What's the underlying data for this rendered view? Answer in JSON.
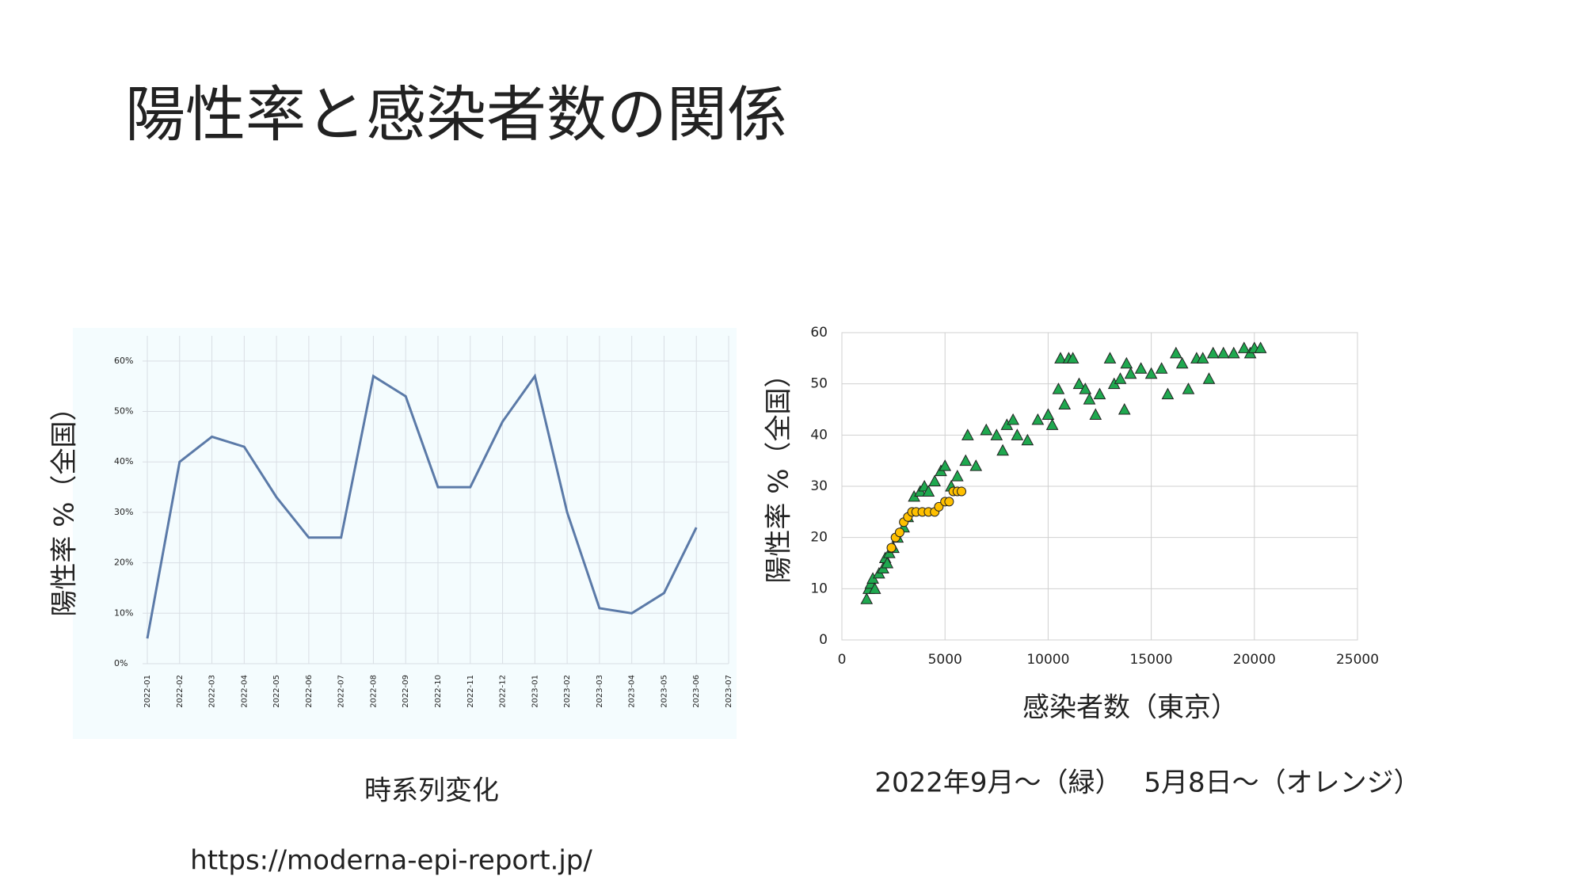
{
  "title": "陽性率と感染者数の関係",
  "charts": [
    {
      "chart_data": {
        "type": "line",
        "ylabel": "陽性率 %（全国）",
        "x": [
          "2022-01",
          "2022-02",
          "2022-03",
          "2022-04",
          "2022-05",
          "2022-06",
          "2022-07",
          "2022-08",
          "2022-09",
          "2022-10",
          "2022-11",
          "2022-12",
          "2023-01",
          "2023-02",
          "2023-03",
          "2023-04",
          "2023-05",
          "2023-06",
          "2023-07"
        ],
        "series": [
          {
            "name": null,
            "color": "#5b7aa8",
            "values": [
              5,
              40,
              45,
              43,
              33,
              25,
              25,
              57,
              53,
              35,
              35,
              48,
              57,
              30,
              11,
              10,
              14,
              27,
              null
            ]
          }
        ],
        "ylim": [
          0,
          65
        ],
        "yticks": [
          {
            "value": 0,
            "label": "0%"
          },
          {
            "value": 10,
            "label": "10%"
          },
          {
            "value": 20,
            "label": "20%"
          },
          {
            "value": 30,
            "label": "30%"
          },
          {
            "value": 40,
            "label": "40%"
          },
          {
            "value": 50,
            "label": "50%"
          },
          {
            "value": 60,
            "label": "60%"
          }
        ],
        "grid": true,
        "caption": "時系列変化"
      }
    },
    {
      "chart_data": {
        "type": "scatter",
        "xlabel": "感染者数（東京）",
        "ylabel": "陽性率 %（全国）",
        "series": [
          {
            "name": "緑",
            "color": "#1fa84f",
            "marker": "triangle",
            "x": [
              1200,
              1300,
              1400,
              1500,
              1600,
              1800,
              2000,
              2100,
              2200,
              2300,
              2500,
              2700,
              3000,
              3200,
              3500,
              3800,
              4000,
              4200,
              4500,
              4800,
              5000,
              5300,
              5600,
              6000,
              6100,
              6500,
              7000,
              7500,
              7800,
              8000,
              8300,
              8500,
              9000,
              9500,
              10000,
              10200,
              10500,
              10600,
              10800,
              11000,
              11200,
              11500,
              11800,
              12000,
              12300,
              12500,
              13000,
              13200,
              13500,
              13700,
              13800,
              14000,
              14500,
              15000,
              15500,
              15800,
              16200,
              16500,
              16800,
              17200,
              17500,
              17800,
              18000,
              18500,
              19000,
              19500,
              19800,
              20000,
              20300
            ],
            "y": [
              8,
              10,
              11,
              12,
              10,
              13,
              14,
              16,
              15,
              17,
              18,
              20,
              22,
              24,
              28,
              29,
              30,
              29,
              31,
              33,
              34,
              30,
              32,
              35,
              40,
              34,
              41,
              40,
              37,
              42,
              43,
              40,
              39,
              43,
              44,
              42,
              49,
              55,
              46,
              55,
              55,
              50,
              49,
              47,
              44,
              48,
              55,
              50,
              51,
              45,
              54,
              52,
              53,
              52,
              53,
              48,
              56,
              54,
              49,
              55,
              55,
              51,
              56,
              56,
              56,
              57,
              56,
              57,
              57
            ]
          },
          {
            "name": "オレンジ",
            "color": "#ffc000",
            "marker": "circle",
            "x": [
              2400,
              2600,
              2800,
              3000,
              3200,
              3400,
              3600,
              3900,
              4200,
              4500,
              4700,
              5000,
              5200,
              5400,
              5600,
              5800
            ],
            "y": [
              18,
              20,
              21,
              23,
              24,
              25,
              25,
              25,
              25,
              25,
              26,
              27,
              27,
              29,
              29,
              29
            ]
          }
        ],
        "xlim": [
          0,
          25000
        ],
        "xticks": [
          0,
          5000,
          10000,
          15000,
          20000,
          25000
        ],
        "ylim": [
          0,
          60
        ],
        "yticks": [
          0,
          10,
          20,
          30,
          40,
          50,
          60
        ],
        "grid": true,
        "caption": "2022年9月～（緑）　 5月8日～（オレンジ）"
      }
    }
  ],
  "source": "https://moderna-epi-report.jp/"
}
